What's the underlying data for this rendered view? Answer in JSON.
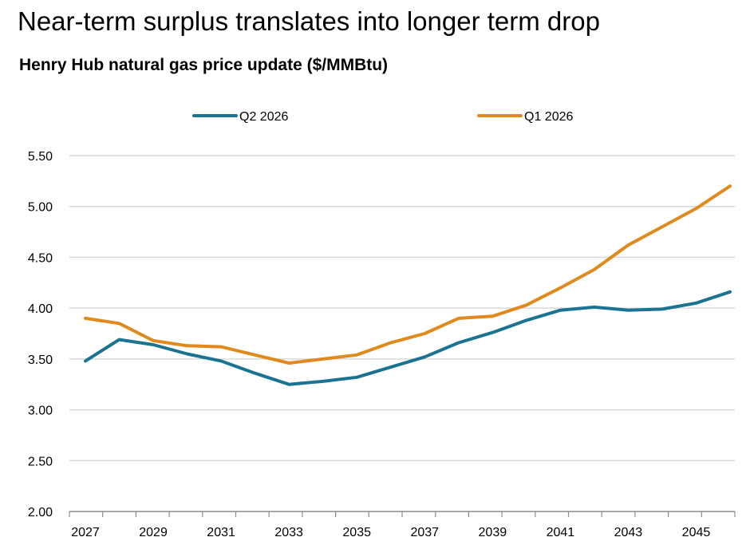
{
  "headline": "Near-term surplus translates into longer term drop",
  "chart_data": {
    "type": "line",
    "title": "Henry Hub natural gas price update ($/MMBtu)",
    "x": [
      2027,
      2028,
      2029,
      2030,
      2031,
      2032,
      2033,
      2034,
      2035,
      2036,
      2037,
      2038,
      2039,
      2040,
      2041,
      2042,
      2043,
      2044,
      2045,
      2046
    ],
    "x_tick_labels": [
      "2027",
      "2029",
      "2031",
      "2033",
      "2035",
      "2037",
      "2039",
      "2041",
      "2043",
      "2045"
    ],
    "y_tick_labels": [
      "2.00",
      "2.50",
      "3.00",
      "3.50",
      "4.00",
      "4.50",
      "5.00",
      "5.50"
    ],
    "ylim": [
      2.0,
      5.5
    ],
    "xlim": [
      2027,
      2046
    ],
    "grid": "horizontal",
    "legend_position": "top",
    "series": [
      {
        "name": "Q2 2026",
        "color": "#1a7391",
        "values": [
          3.48,
          3.69,
          3.64,
          3.55,
          3.48,
          3.36,
          3.25,
          3.28,
          3.32,
          3.42,
          3.52,
          3.66,
          3.76,
          3.88,
          3.98,
          4.01,
          3.98,
          3.99,
          4.05,
          4.16
        ]
      },
      {
        "name": "Q1 2026",
        "color": "#e08a1e",
        "values": [
          3.9,
          3.85,
          3.68,
          3.63,
          3.62,
          3.54,
          3.46,
          3.5,
          3.54,
          3.66,
          3.75,
          3.9,
          3.92,
          4.03,
          4.2,
          4.38,
          4.62,
          4.8,
          4.98,
          5.2
        ]
      }
    ]
  }
}
